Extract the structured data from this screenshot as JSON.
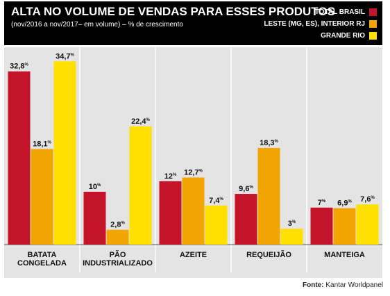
{
  "header": {
    "title": "ALTA NO VOLUME DE VENDAS PARA ESSES PRODUTOS",
    "subtitle": "(nov/2016 a nov/2017– em volume) – % de crescimento"
  },
  "legend": [
    {
      "label": "TOTAL BRASIL",
      "color": "#c4142a"
    },
    {
      "label": "LESTE (MG, ES), INTERIOR RJ",
      "color": "#f2a500"
    },
    {
      "label": "GRANDE RIO",
      "color": "#ffe000"
    }
  ],
  "source": {
    "label": "Fonte:",
    "text": "Kantar Worldpanel"
  },
  "chart_data": {
    "type": "bar",
    "categories": [
      "BATATA\nCONGELADA",
      "PÃO\nINDUSTRIALIZADO",
      "AZEITE",
      "REQUEIJÃO",
      "MANTEIGA"
    ],
    "series": [
      {
        "name": "TOTAL BRASIL",
        "color": "#c4142a",
        "values": [
          32.8,
          10,
          12,
          9.6,
          7
        ],
        "labels": [
          "32,8",
          "10",
          "12",
          "9,6",
          "7"
        ]
      },
      {
        "name": "LESTE (MG, ES), INTERIOR RJ",
        "color": "#f2a500",
        "values": [
          18.1,
          2.8,
          12.7,
          18.3,
          6.9
        ],
        "labels": [
          "18,1",
          "2,8",
          "12,7",
          "18,3",
          "6,9"
        ]
      },
      {
        "name": "GRANDE RIO",
        "color": "#ffe000",
        "values": [
          34.7,
          22.4,
          7.4,
          3,
          7.6
        ],
        "labels": [
          "34,7",
          "22,4",
          "7,4",
          "3",
          "7,6"
        ]
      }
    ],
    "unit": "%",
    "ylim": [
      0,
      35
    ],
    "grid": false,
    "legend_position": "top-right"
  }
}
